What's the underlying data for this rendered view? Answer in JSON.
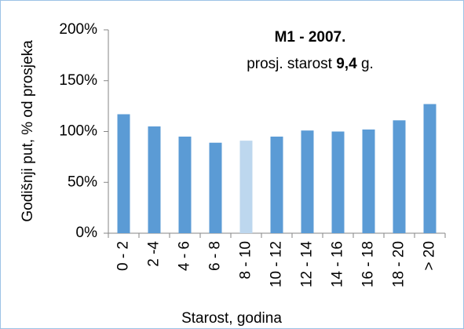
{
  "chart_data": {
    "type": "bar",
    "title": "M1 - 2007.",
    "subtitle": [
      "prosj. starost",
      "9,4",
      "g."
    ],
    "x_label": "Starost, godina",
    "y_label": "Godišnji put, % od prosjeka",
    "categories": [
      "0 - 2",
      "2 -4",
      "4 - 6",
      "6 - 8",
      "8 - 10",
      "10 - 12",
      "12 - 14",
      "14 - 16",
      "16 - 18",
      "18 - 20",
      "> 20"
    ],
    "values": [
      117,
      105,
      95,
      89,
      91,
      95,
      101,
      100,
      102,
      111,
      127
    ],
    "colors": [
      "#5b9bd5",
      "#5b9bd5",
      "#5b9bd5",
      "#5b9bd5",
      "#bdd7ee",
      "#5b9bd5",
      "#5b9bd5",
      "#5b9bd5",
      "#5b9bd5",
      "#5b9bd5",
      "#5b9bd5"
    ],
    "ylim": [
      0,
      200
    ],
    "yticks": [
      {
        "value": 0,
        "label": "0%"
      },
      {
        "value": 50,
        "label": "50%"
      },
      {
        "value": 100,
        "label": "100%"
      },
      {
        "value": 150,
        "label": "150%"
      },
      {
        "value": 200,
        "label": "200%"
      }
    ],
    "grid": false
  }
}
